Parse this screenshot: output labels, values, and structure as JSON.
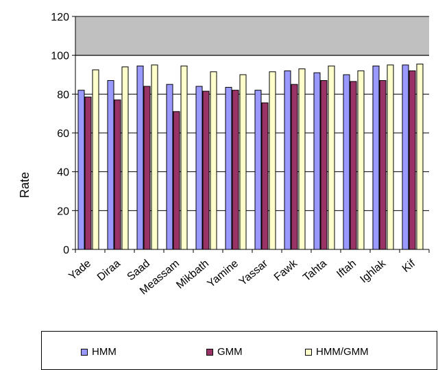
{
  "chart_data": {
    "type": "bar",
    "title": "",
    "xlabel": "",
    "ylabel": "Rate",
    "ylim": [
      0,
      120
    ],
    "yticks": [
      0,
      20,
      40,
      60,
      80,
      100,
      120
    ],
    "grid": true,
    "legend_position": "bottom",
    "categories": [
      "Yade",
      "Diraa",
      "Saad",
      "Meassam",
      "Mikbath",
      "Yamine",
      "Yassar",
      "Fawk",
      "Tahta",
      "Iftah",
      "Ighlak",
      "Kif"
    ],
    "series": [
      {
        "name": "HMM",
        "color": "#9999ff",
        "values": [
          82,
          87,
          94.5,
          85,
          84,
          83.5,
          82,
          92,
          91,
          90,
          94.5,
          95
        ]
      },
      {
        "name": "GMM",
        "color": "#993366",
        "values": [
          78.5,
          77,
          84,
          71,
          81.5,
          82,
          75.5,
          85,
          87,
          86.5,
          87,
          92
        ]
      },
      {
        "name": "HMM/GMM",
        "color": "#ffffcc",
        "values": [
          92.5,
          94,
          95,
          94.5,
          91.5,
          90,
          91.5,
          93,
          94.5,
          92,
          95,
          95.5
        ]
      }
    ],
    "plot_area_color": "#c0c0c0"
  }
}
